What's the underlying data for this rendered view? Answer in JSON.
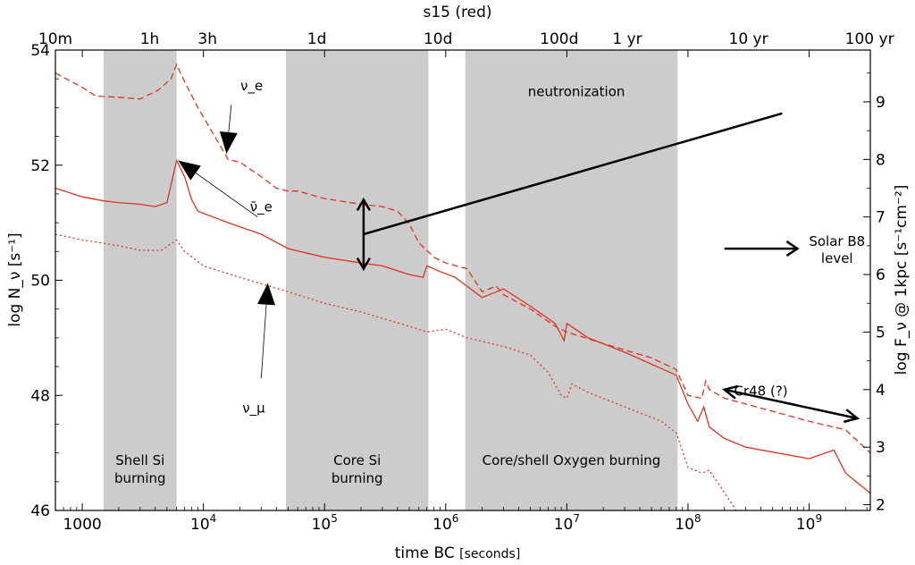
{
  "chart_data": {
    "type": "line",
    "title": "s15 (red)",
    "xlabel_main": "time BC",
    "xlabel_unit": "[seconds]",
    "ylabel_left": "log N_ν [s⁻¹]",
    "ylabel_right": "log F_ν @ 1kpc [s⁻¹cm⁻²]",
    "x_scale": "log",
    "xlim": [
      600,
      3200000000
    ],
    "ylim": [
      46,
      54
    ],
    "ylim_right": [
      1.9,
      9.9
    ],
    "x_ticks": [
      {
        "label": "1000",
        "value": 1000
      },
      {
        "label": "10⁴",
        "value": 10000
      },
      {
        "label": "10⁵",
        "value": 100000
      },
      {
        "label": "10⁶",
        "value": 1000000
      },
      {
        "label": "10⁷",
        "value": 10000000
      },
      {
        "label": "10⁸",
        "value": 100000000
      },
      {
        "label": "10⁹",
        "value": 1000000000
      }
    ],
    "y_ticks": [
      46,
      48,
      50,
      52,
      54
    ],
    "y_right_ticks": [
      2,
      3,
      4,
      5,
      6,
      7,
      8,
      9
    ],
    "top_ticks": [
      {
        "label": "10m",
        "value": 600
      },
      {
        "label": "1h",
        "value": 3600
      },
      {
        "label": "3h",
        "value": 10800
      },
      {
        "label": "1d",
        "value": 86400
      },
      {
        "label": "10d",
        "value": 864000
      },
      {
        "label": "100d",
        "value": 8640000
      },
      {
        "label": "1 yr",
        "value": 31536000
      },
      {
        "label": "10 yr",
        "value": 315360000
      },
      {
        "label": "100 yr",
        "value": 3153600000
      }
    ],
    "bands": [
      {
        "label_lines": [
          "Shell Si",
          "burning"
        ],
        "x": [
          1500,
          6000
        ]
      },
      {
        "label_lines": [
          "Core Si",
          "burning"
        ],
        "x": [
          48000,
          720000
        ]
      },
      {
        "label_lines": [
          "Core/shell Oxygen burning"
        ],
        "x": [
          1450000,
          82000000
        ]
      }
    ],
    "band_color": "#cccccc",
    "series_color": "#dd3322",
    "series": [
      {
        "style": "dashed",
        "points": [
          [
            600,
            53.6
          ],
          [
            1000,
            53.35
          ],
          [
            1300,
            53.2
          ],
          [
            2000,
            53.18
          ],
          [
            3000,
            53.15
          ],
          [
            4200,
            53.3
          ],
          [
            5400,
            53.5
          ],
          [
            6000,
            53.75
          ],
          [
            7000,
            53.45
          ],
          [
            9000,
            53.0
          ],
          [
            12000,
            52.55
          ],
          [
            16000,
            52.1
          ],
          [
            20000,
            52.05
          ],
          [
            30000,
            51.8
          ],
          [
            40000,
            51.6
          ],
          [
            50000,
            51.55
          ],
          [
            60000,
            51.55
          ],
          [
            100000,
            51.42
          ],
          [
            200000,
            51.32
          ],
          [
            300000,
            51.28
          ],
          [
            400000,
            51.2
          ],
          [
            500000,
            50.98
          ],
          [
            600000,
            50.65
          ],
          [
            800000,
            50.4
          ],
          [
            1000000,
            50.3
          ],
          [
            1500000,
            50.2
          ],
          [
            2000000,
            49.8
          ],
          [
            2600000,
            49.9
          ],
          [
            3000000,
            49.75
          ],
          [
            5000000,
            49.5
          ],
          [
            8000000,
            49.2
          ],
          [
            10000000,
            49.1
          ],
          [
            20000000,
            48.9
          ],
          [
            50000000,
            48.65
          ],
          [
            80000000,
            48.45
          ],
          [
            100000000,
            48.0
          ],
          [
            130000000,
            47.95
          ],
          [
            140000000,
            48.25
          ],
          [
            150000000,
            48.1
          ],
          [
            200000000,
            47.95
          ],
          [
            300000000,
            47.85
          ],
          [
            1000000000,
            47.55
          ],
          [
            2000000000,
            47.4
          ],
          [
            3200000000,
            47.0
          ]
        ]
      },
      {
        "style": "solid",
        "points": [
          [
            600,
            51.6
          ],
          [
            1000,
            51.45
          ],
          [
            1500,
            51.38
          ],
          [
            2000,
            51.35
          ],
          [
            3000,
            51.32
          ],
          [
            4000,
            51.28
          ],
          [
            5000,
            51.35
          ],
          [
            5600,
            51.8
          ],
          [
            6000,
            52.08
          ],
          [
            7000,
            51.8
          ],
          [
            8000,
            51.4
          ],
          [
            9000,
            51.2
          ],
          [
            12000,
            51.1
          ],
          [
            16000,
            51.0
          ],
          [
            30000,
            50.8
          ],
          [
            50000,
            50.55
          ],
          [
            100000,
            50.4
          ],
          [
            200000,
            50.3
          ],
          [
            300000,
            50.25
          ],
          [
            500000,
            50.1
          ],
          [
            650000,
            50.05
          ],
          [
            700000,
            50.25
          ],
          [
            900000,
            50.15
          ],
          [
            1200000,
            50.05
          ],
          [
            2000000,
            49.7
          ],
          [
            3000000,
            49.85
          ],
          [
            5000000,
            49.55
          ],
          [
            8000000,
            49.25
          ],
          [
            9500000,
            48.95
          ],
          [
            10000000,
            49.25
          ],
          [
            15000000,
            49.0
          ],
          [
            30000000,
            48.75
          ],
          [
            80000000,
            48.35
          ],
          [
            100000000,
            47.85
          ],
          [
            120000000,
            47.55
          ],
          [
            135000000,
            47.8
          ],
          [
            150000000,
            47.45
          ],
          [
            200000000,
            47.25
          ],
          [
            300000000,
            47.1
          ],
          [
            1000000000,
            46.9
          ],
          [
            1600000000,
            47.05
          ],
          [
            2000000000,
            46.65
          ],
          [
            3200000000,
            46.3
          ]
        ]
      },
      {
        "style": "dotted",
        "points": [
          [
            600,
            50.8
          ],
          [
            1000,
            50.7
          ],
          [
            2000,
            50.6
          ],
          [
            3000,
            50.52
          ],
          [
            4500,
            50.52
          ],
          [
            6000,
            50.7
          ],
          [
            7000,
            50.5
          ],
          [
            10000,
            50.25
          ],
          [
            20000,
            50.05
          ],
          [
            50000,
            49.8
          ],
          [
            100000,
            49.6
          ],
          [
            200000,
            49.45
          ],
          [
            500000,
            49.2
          ],
          [
            700000,
            49.1
          ],
          [
            1000000,
            49.15
          ],
          [
            1500000,
            49.0
          ],
          [
            3000000,
            48.85
          ],
          [
            5000000,
            48.7
          ],
          [
            7000000,
            48.4
          ],
          [
            9000000,
            48.0
          ],
          [
            10000000,
            47.95
          ],
          [
            11000000,
            48.2
          ],
          [
            15000000,
            48.05
          ],
          [
            30000000,
            47.8
          ],
          [
            60000000,
            47.55
          ],
          [
            80000000,
            47.35
          ],
          [
            100000000,
            46.75
          ],
          [
            130000000,
            46.65
          ],
          [
            150000000,
            46.7
          ],
          [
            180000000,
            46.45
          ],
          [
            250000000,
            46.0
          ]
        ]
      }
    ],
    "annotations": [
      {
        "text": "ν_e",
        "label_x": 25000,
        "label_y": 53.3,
        "arrow_to": [
          15500,
          52.2
        ],
        "arrow_from": [
          17000,
          53.05
        ],
        "style": "thin-filled"
      },
      {
        "text": "ν̄_e",
        "label_x": 30000,
        "label_y": 51.2,
        "arrow_to": [
          6200,
          52.08
        ],
        "arrow_from": [
          28000,
          51.1
        ],
        "style": "thin-filled"
      },
      {
        "text": "ν_μ",
        "label_x": 26000,
        "label_y": 47.7,
        "arrow_to": [
          34000,
          49.95
        ],
        "arrow_from": [
          30000,
          48.3
        ],
        "style": "thin-filled"
      },
      {
        "text": "neutronization",
        "label_x": 12000000,
        "label_y": 53.2,
        "line_from": [
          600000000,
          52.9
        ],
        "line_to": [
          210000,
          50.8
        ],
        "style": "thick-line"
      },
      {
        "text": "Solar B8\nlevel",
        "label_x": 1700000000,
        "label_y": 50.6,
        "arrow_from": [
          200000000,
          50.55
        ],
        "arrow_to": [
          800000000,
          50.55
        ],
        "style": "thick-open"
      },
      {
        "text": "Cr48 (?)",
        "label_x": 400000000,
        "label_y": 48.0,
        "arrow_from": [
          200000000,
          48.1
        ],
        "arrow_to": [
          2500000000,
          47.6
        ],
        "style": "thick-open-double"
      }
    ],
    "double_arrow": {
      "x": 210000,
      "y_from": 51.4,
      "y_to": 50.2
    },
    "grid": false,
    "legend": "none"
  }
}
